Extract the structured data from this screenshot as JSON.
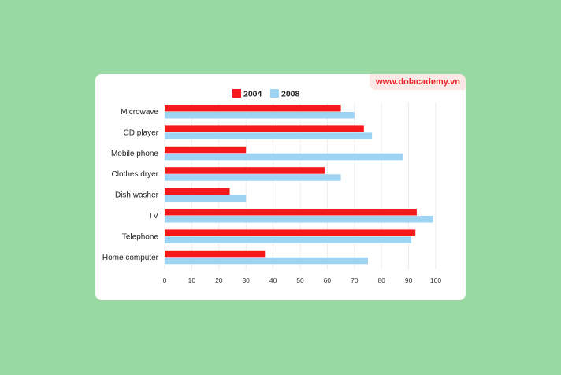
{
  "watermark": "www.dolacademy.vn",
  "colors": {
    "2004": "#f5191c",
    "2008": "#9dd3f3"
  },
  "chart_data": {
    "type": "bar",
    "orientation": "horizontal",
    "categories": [
      "Microwave",
      "CD player",
      "Mobile phone",
      "Clothes dryer",
      "Dish washer",
      "TV",
      "Telephone",
      "Home computer"
    ],
    "series": [
      {
        "name": "2004",
        "values": [
          65,
          73.5,
          30,
          59,
          24,
          93,
          92.5,
          37
        ]
      },
      {
        "name": "2008",
        "values": [
          70,
          76.5,
          88,
          65,
          30,
          99,
          91,
          75
        ]
      }
    ],
    "xlim": [
      0,
      100
    ],
    "xticks": [
      "0",
      "10",
      "20",
      "30",
      "40",
      "50",
      "60",
      "70",
      "80",
      "90",
      "100"
    ],
    "grid": true,
    "legend": "top"
  }
}
